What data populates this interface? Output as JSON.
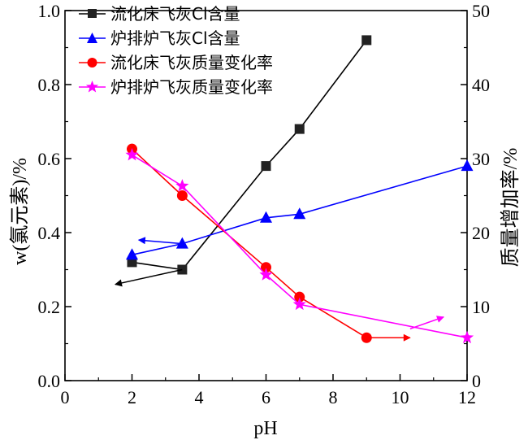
{
  "chart_data": {
    "type": "line",
    "xlabel": "pH",
    "ylabel_left": "w(氯元素)/%",
    "ylabel_right": "质量增加率/%",
    "xlim": [
      0,
      12
    ],
    "ylim_left": [
      0,
      1.0
    ],
    "ylim_right": [
      0,
      50
    ],
    "x_ticks": [
      "0",
      "2",
      "4",
      "6",
      "8",
      "10",
      "12"
    ],
    "y_left_ticks": [
      "0.0",
      "0.2",
      "0.4",
      "0.6",
      "0.8",
      "1.0"
    ],
    "y_right_ticks": [
      "0",
      "10",
      "20",
      "30",
      "40",
      "50"
    ],
    "legend_position": "top-left",
    "series": [
      {
        "name": "流化床飞灰Cl含量",
        "axis": "left",
        "color": "#000000",
        "marker": "square",
        "x": [
          2,
          3.5,
          6,
          7,
          9
        ],
        "y": [
          0.32,
          0.3,
          0.58,
          0.68,
          0.92
        ]
      },
      {
        "name": "炉排炉飞灰Cl含量",
        "axis": "left",
        "color": "#0000ff",
        "marker": "triangle",
        "x": [
          2,
          3.5,
          6,
          7,
          12
        ],
        "y": [
          0.34,
          0.37,
          0.44,
          0.45,
          0.58
        ]
      },
      {
        "name": "流化床飞灰质量变化率",
        "axis": "right",
        "color": "#ff0000",
        "marker": "circle",
        "x": [
          2,
          3.5,
          6,
          7,
          9
        ],
        "y": [
          31.3,
          25.0,
          15.3,
          11.3,
          5.8
        ]
      },
      {
        "name": "炉排炉飞灰质量变化率",
        "axis": "right",
        "color": "#ff00ff",
        "marker": "star",
        "x": [
          2,
          3.5,
          6,
          7,
          12
        ],
        "y": [
          30.5,
          26.3,
          14.3,
          10.3,
          5.8
        ]
      }
    ],
    "annotations": [
      {
        "type": "arrow",
        "axis": "left",
        "color": "#000000",
        "from": [
          3.5,
          0.3
        ],
        "to": [
          1.5,
          0.26
        ]
      },
      {
        "type": "arrow",
        "axis": "left",
        "color": "#0000ff",
        "from": [
          3.5,
          0.37
        ],
        "to": [
          2.2,
          0.38
        ]
      },
      {
        "type": "arrow",
        "axis": "right",
        "color": "#ff0000",
        "from": [
          9,
          5.8
        ],
        "to": [
          10.3,
          5.8
        ]
      },
      {
        "type": "arrow",
        "axis": "right",
        "color": "#ff00ff",
        "from": [
          10.3,
          7.0
        ],
        "to": [
          11.3,
          8.6
        ]
      }
    ]
  }
}
